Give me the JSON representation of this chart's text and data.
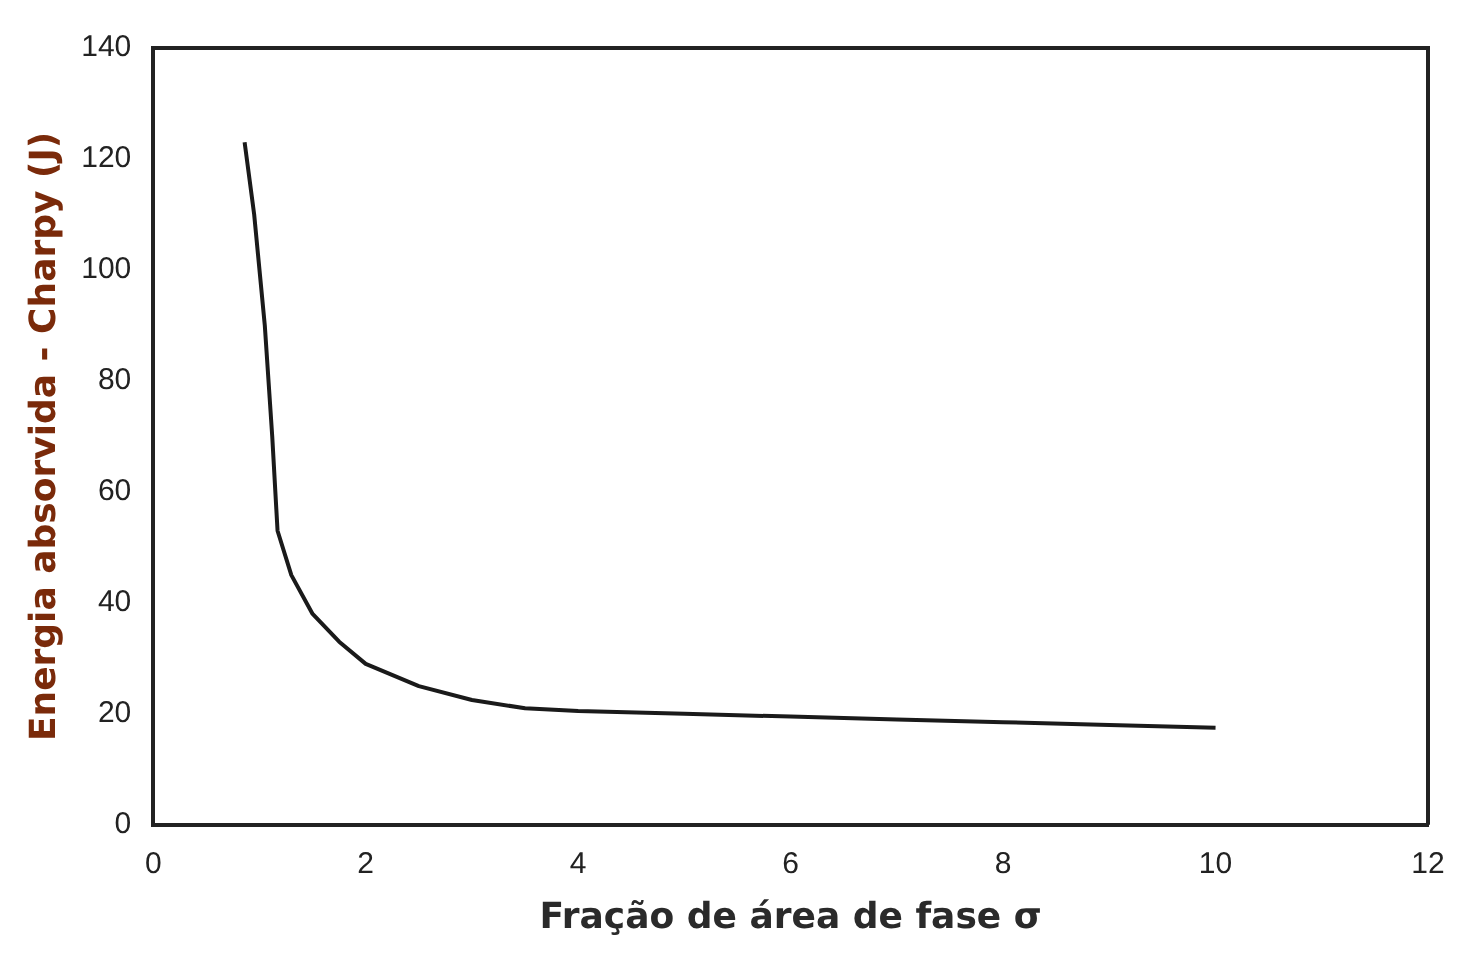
{
  "chart_data": {
    "type": "line",
    "xlabel": "Fração de área de fase σ",
    "ylabel": "Energia absorvida - Charpy (J)",
    "xlim": [
      0,
      12
    ],
    "xticks": [
      0,
      2,
      4,
      6,
      8,
      10,
      12
    ],
    "ylim": [
      0,
      140
    ],
    "yticks": [
      0,
      20,
      40,
      60,
      80,
      100,
      120,
      140
    ],
    "grid": false,
    "legend": false,
    "marker": "none",
    "line_style": "solid",
    "series": [
      {
        "color": "#1a1a1a",
        "x": [
          0.86,
          0.95,
          1.05,
          1.12,
          1.17,
          1.3,
          1.5,
          1.75,
          2,
          2.5,
          3,
          3.5,
          4,
          5,
          6,
          7,
          8,
          9,
          10
        ],
        "values": [
          123,
          110,
          90,
          70,
          53,
          45,
          38,
          33,
          29,
          25,
          22.5,
          21,
          20.5,
          20,
          19.5,
          19,
          18.5,
          18,
          17.5
        ]
      }
    ]
  }
}
